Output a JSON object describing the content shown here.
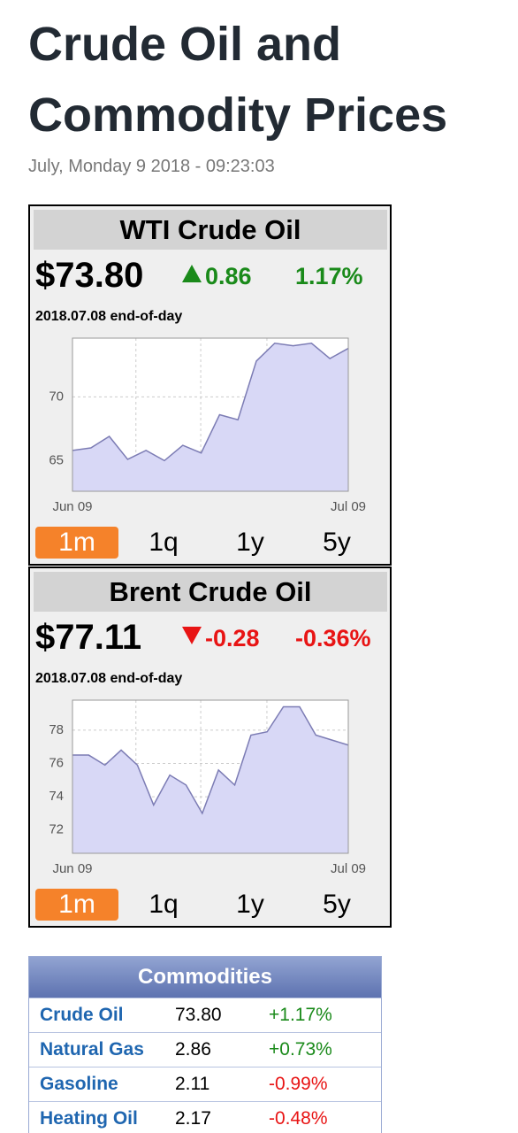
{
  "header": {
    "title": "Crude Oil and Commodity Prices",
    "date": "July, Monday 9 2018 - 09:23:03"
  },
  "widgets": [
    {
      "title": "WTI Crude Oil",
      "price": "$73.80",
      "change": "0.86",
      "change_pct": "1.17%",
      "color": "#1a8a1a",
      "date_label": "2018.07.08 end-of-day",
      "tabs": [
        "1m",
        "1q",
        "1y",
        "5y"
      ]
    },
    {
      "title": "Brent Crude Oil",
      "price": "$77.11",
      "change": "-0.28",
      "change_pct": "-0.36%",
      "color": "#e81414",
      "date_label": "2018.07.08 end-of-day",
      "tabs": [
        "1m",
        "1q",
        "1y",
        "5y"
      ]
    }
  ],
  "chart_data": [
    {
      "type": "area",
      "color": "#d8d8f6",
      "line_color": "#7c7cb4",
      "categories": [
        "Jun 09",
        null,
        null,
        null,
        null,
        null,
        null,
        null,
        null,
        null,
        null,
        null,
        null,
        null,
        null,
        "Jul 09"
      ],
      "values": [
        65.8,
        66.0,
        66.9,
        65.1,
        65.8,
        65.0,
        66.2,
        65.6,
        68.6,
        68.2,
        72.8,
        74.2,
        74.0,
        74.2,
        73.0,
        73.8
      ],
      "ylim": [
        62.6,
        74.6
      ],
      "yticks": [
        65,
        70
      ],
      "grid": true
    },
    {
      "type": "area",
      "color": "#d8d8f6",
      "line_color": "#7c7cb4",
      "categories": [
        "Jun 09",
        null,
        null,
        null,
        null,
        null,
        null,
        null,
        null,
        null,
        null,
        null,
        null,
        null,
        null,
        null,
        null,
        "Jul 09"
      ],
      "values": [
        76.5,
        76.5,
        75.9,
        76.8,
        75.9,
        73.5,
        75.3,
        74.7,
        73.0,
        75.6,
        74.7,
        77.7,
        77.9,
        79.4,
        79.4,
        77.7,
        77.4,
        77.1
      ],
      "ylim": [
        70.6,
        79.8
      ],
      "yticks": [
        72,
        74,
        76,
        78
      ],
      "grid": true
    }
  ],
  "table": {
    "title": "Commodities",
    "up_color": "#1a8a1a",
    "down_color": "#e81414",
    "rows": [
      [
        "Crude Oil",
        "73.80",
        "+1.17%"
      ],
      [
        "Natural Gas",
        "2.86",
        "+0.73%"
      ],
      [
        "Gasoline",
        "2.11",
        "-0.99%"
      ],
      [
        "Heating Oil",
        "2.17",
        "-0.48%"
      ]
    ]
  }
}
